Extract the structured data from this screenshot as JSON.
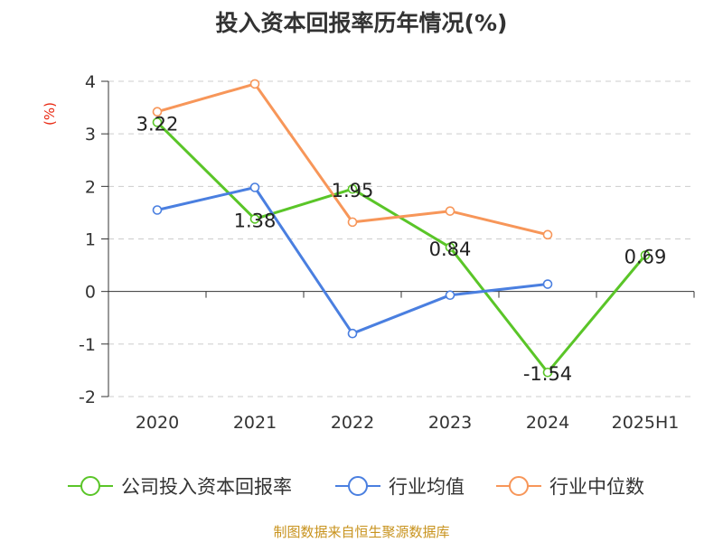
{
  "chart_data": {
    "type": "line",
    "title": "投入资本回报率历年情况(%)",
    "ylabel": "(%)",
    "categories": [
      "2020",
      "2021",
      "2022",
      "2023",
      "2024",
      "2025H1"
    ],
    "ylim": [
      -2,
      4
    ],
    "yticks": [
      -2,
      -1,
      0,
      1,
      2,
      3,
      4
    ],
    "grid": true,
    "legend_position": "bottom",
    "series": [
      {
        "name": "公司投入资本回报率",
        "color": "#5ac528",
        "values": [
          3.22,
          1.38,
          1.95,
          0.84,
          -1.54,
          0.69
        ],
        "show_labels": true
      },
      {
        "name": "行业均值",
        "color": "#4a7fe0",
        "values": [
          1.55,
          1.98,
          -0.8,
          -0.07,
          0.14,
          null
        ],
        "show_labels": false
      },
      {
        "name": "行业中位数",
        "color": "#f79659",
        "values": [
          3.42,
          3.95,
          1.32,
          1.53,
          1.08,
          null
        ],
        "show_labels": false
      }
    ]
  },
  "source_note": "制图数据来自恒生聚源数据库",
  "colors": {
    "title": "#333333",
    "ylabel": "#e8260f",
    "source": "#c8931e",
    "axis": "#333333",
    "grid": "#cccccc"
  }
}
